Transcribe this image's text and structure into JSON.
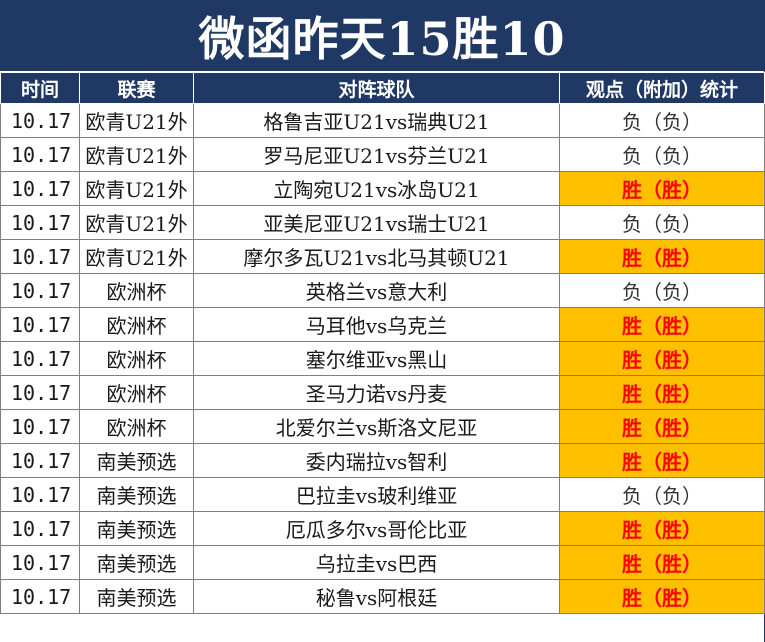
{
  "title": "微函昨天15胜10",
  "headers": {
    "time": "时间",
    "league": "联赛",
    "match": "对阵球队",
    "result": "观点（附加）统计"
  },
  "colors": {
    "header_bg": "#1f3864",
    "win_bg": "#ffc000",
    "win_text": "#ff0000"
  },
  "rows": [
    {
      "time": "10.17",
      "league": "欧青U21外",
      "match": "格鲁吉亚U21vs瑞典U21",
      "result": "负（负）",
      "win": false
    },
    {
      "time": "10.17",
      "league": "欧青U21外",
      "match": "罗马尼亚U21vs芬兰U21",
      "result": "负（负）",
      "win": false
    },
    {
      "time": "10.17",
      "league": "欧青U21外",
      "match": "立陶宛U21vs冰岛U21",
      "result": "胜（胜）",
      "win": true
    },
    {
      "time": "10.17",
      "league": "欧青U21外",
      "match": "亚美尼亚U21vs瑞士U21",
      "result": "负（负）",
      "win": false
    },
    {
      "time": "10.17",
      "league": "欧青U21外",
      "match": "摩尔多瓦U21vs北马其顿U21",
      "result": "胜（胜）",
      "win": true
    },
    {
      "time": "10.17",
      "league": "欧洲杯",
      "match": "英格兰vs意大利",
      "result": "负（负）",
      "win": false
    },
    {
      "time": "10.17",
      "league": "欧洲杯",
      "match": "马耳他vs乌克兰",
      "result": "胜（胜）",
      "win": true
    },
    {
      "time": "10.17",
      "league": "欧洲杯",
      "match": "塞尔维亚vs黑山",
      "result": "胜（胜）",
      "win": true
    },
    {
      "time": "10.17",
      "league": "欧洲杯",
      "match": "圣马力诺vs丹麦",
      "result": "胜（胜）",
      "win": true
    },
    {
      "time": "10.17",
      "league": "欧洲杯",
      "match": "北爱尔兰vs斯洛文尼亚",
      "result": "胜（胜）",
      "win": true
    },
    {
      "time": "10.17",
      "league": "南美预选",
      "match": "委内瑞拉vs智利",
      "result": "胜（胜）",
      "win": true
    },
    {
      "time": "10.17",
      "league": "南美预选",
      "match": "巴拉圭vs玻利维亚",
      "result": "负（负）",
      "win": false
    },
    {
      "time": "10.17",
      "league": "南美预选",
      "match": "厄瓜多尔vs哥伦比亚",
      "result": "胜（胜）",
      "win": true
    },
    {
      "time": "10.17",
      "league": "南美预选",
      "match": "乌拉圭vs巴西",
      "result": "胜（胜）",
      "win": true
    },
    {
      "time": "10.17",
      "league": "南美预选",
      "match": "秘鲁vs阿根廷",
      "result": "胜（胜）",
      "win": true
    }
  ]
}
